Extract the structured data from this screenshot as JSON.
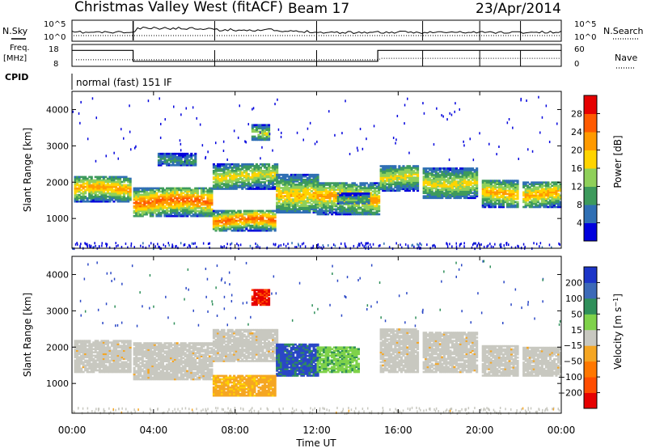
{
  "header": {
    "station": "Christmas Valley West (fitACF)",
    "beam": "Beam 17",
    "date": "23/Apr/2014"
  },
  "strip_labels": {
    "nsky": "N.Sky",
    "nsearch": "N.Search",
    "freq_line1": "Freq.",
    "freq_line2": "[MHz]",
    "nave": "Nave",
    "cpid": "CPID",
    "cpid_value": "normal (fast) 151 IF"
  },
  "chart_data": [
    {
      "type": "line",
      "panel": "noise",
      "yticks_left": [
        "10^5",
        "10^0"
      ],
      "yticks_right": [
        "10^5",
        "10^0"
      ],
      "series": [
        {
          "name": "N.Sky",
          "style": "solid"
        },
        {
          "name": "N.Search",
          "style": "dotted"
        }
      ],
      "x_hours": [
        0,
        3,
        3.2,
        6.8,
        7,
        10,
        12,
        12.2,
        15,
        16.9,
        17.2,
        19.9,
        20.2,
        22,
        24
      ],
      "sky_level": [
        0.55,
        0.55,
        0.8,
        0.75,
        0.7,
        0.6,
        0.55,
        0.55,
        0.55,
        0.55,
        0.55,
        0.55,
        0.55,
        0.55,
        0.55
      ]
    },
    {
      "type": "line",
      "panel": "frequency",
      "yticks_left": [
        "18",
        "8"
      ],
      "yticks_right": [
        "60",
        "0"
      ],
      "series": [
        {
          "name": "Freq. [MHz]",
          "style": "solid",
          "x": [
            0,
            3,
            3,
            15,
            15,
            24
          ],
          "y": [
            15.5,
            15.5,
            10.5,
            10.5,
            15.5,
            15.5
          ]
        },
        {
          "name": "Nave",
          "style": "dotted",
          "x": [
            0.2,
            3,
            3.2,
            15,
            15.2,
            24
          ],
          "y": [
            18,
            18,
            18,
            18,
            22,
            22
          ]
        }
      ]
    },
    {
      "type": "heatmap",
      "panel": "power",
      "xlabel": "",
      "ylabel": "Slant Range [km]",
      "xlim": [
        0,
        24
      ],
      "ylim": [
        180,
        4500
      ],
      "yticks": [
        1000,
        2000,
        3000,
        4000
      ],
      "colorbar": {
        "label": "Power [dB]",
        "ticks": [
          4,
          8,
          12,
          16,
          20,
          24,
          28
        ],
        "range": [
          0,
          32
        ],
        "colors": [
          "#0000dd",
          "#2f6fb4",
          "#3d9a5c",
          "#8fd05a",
          "#ffd400",
          "#ff9a00",
          "#ff5a00",
          "#e60000"
        ]
      },
      "bands": [
        {
          "t0": 0.1,
          "t1": 2.9,
          "r0": 1450,
          "r1": 2150,
          "peak": 22
        },
        {
          "t0": 3.0,
          "t1": 6.8,
          "r0": 1050,
          "r1": 1850,
          "peak": 26
        },
        {
          "t0": 6.9,
          "t1": 10.0,
          "r0": 1800,
          "r1": 2500,
          "peak": 18
        },
        {
          "t0": 10.0,
          "t1": 12.0,
          "r0": 1150,
          "r1": 2200,
          "peak": 20
        },
        {
          "t0": 12.0,
          "t1": 15.0,
          "r0": 1100,
          "r1": 2000,
          "peak": 22
        },
        {
          "t0": 15.1,
          "t1": 17.0,
          "r0": 1750,
          "r1": 2450,
          "peak": 18
        },
        {
          "t0": 17.2,
          "t1": 19.9,
          "r0": 1550,
          "r1": 2400,
          "peak": 18
        },
        {
          "t0": 20.1,
          "t1": 21.9,
          "r0": 1300,
          "r1": 2050,
          "peak": 22
        },
        {
          "t0": 22.1,
          "t1": 24.0,
          "r0": 1300,
          "r1": 2000,
          "peak": 22
        },
        {
          "t0": 6.9,
          "t1": 9.9,
          "r0": 650,
          "r1": 1200,
          "peak": 26
        },
        {
          "t0": 4.2,
          "t1": 6.0,
          "r0": 2450,
          "r1": 2800,
          "peak": 10
        },
        {
          "t0": 8.8,
          "t1": 9.6,
          "r0": 3150,
          "r1": 3600,
          "peak": 16
        },
        {
          "t0": 13.0,
          "t1": 14.5,
          "r0": 1400,
          "r1": 1700,
          "peak": 12
        }
      ]
    },
    {
      "type": "heatmap",
      "panel": "velocity",
      "xlabel": "Time UT",
      "ylabel": "Slant Range [km]",
      "xlim": [
        0,
        24
      ],
      "ylim": [
        180,
        4500
      ],
      "yticks": [
        1000,
        2000,
        3000,
        4000
      ],
      "xticks": [
        "00:00",
        "04:00",
        "08:00",
        "12:00",
        "16:00",
        "20:00",
        "00:00"
      ],
      "colorbar": {
        "label": "Velocity [m s^-1]",
        "ticks": [
          "200",
          "100",
          "50",
          "15",
          "-15",
          "-50",
          "-100",
          "-200"
        ],
        "colors": [
          "#1c35c8",
          "#3c6ab8",
          "#2f8f5a",
          "#7fd24a",
          "#c8c8c0",
          "#f5a623",
          "#ff7700",
          "#ff4d00",
          "#e60000"
        ]
      },
      "bands": [
        {
          "t0": 0.1,
          "t1": 2.9,
          "r0": 1300,
          "r1": 2200,
          "kind": "gs"
        },
        {
          "t0": 3.0,
          "t1": 6.8,
          "r0": 1100,
          "r1": 2100,
          "kind": "gs"
        },
        {
          "t0": 6.9,
          "t1": 10.0,
          "r0": 1600,
          "r1": 2500,
          "kind": "gs"
        },
        {
          "t0": 10.0,
          "t1": 12.0,
          "r0": 1200,
          "r1": 2100,
          "kind": "blue"
        },
        {
          "t0": 12.0,
          "t1": 14.0,
          "r0": 1300,
          "r1": 2000,
          "kind": "green"
        },
        {
          "t0": 15.1,
          "t1": 17.0,
          "r0": 1300,
          "r1": 2500,
          "kind": "gs"
        },
        {
          "t0": 17.2,
          "t1": 19.9,
          "r0": 1300,
          "r1": 2400,
          "kind": "gs"
        },
        {
          "t0": 20.1,
          "t1": 21.9,
          "r0": 1200,
          "r1": 2050,
          "kind": "gs"
        },
        {
          "t0": 22.1,
          "t1": 24.0,
          "r0": 1200,
          "r1": 2000,
          "kind": "gs"
        },
        {
          "t0": 6.9,
          "t1": 9.9,
          "r0": 650,
          "r1": 1200,
          "kind": "orange"
        },
        {
          "t0": 8.8,
          "t1": 9.6,
          "r0": 3150,
          "r1": 3600,
          "kind": "red"
        }
      ]
    }
  ]
}
